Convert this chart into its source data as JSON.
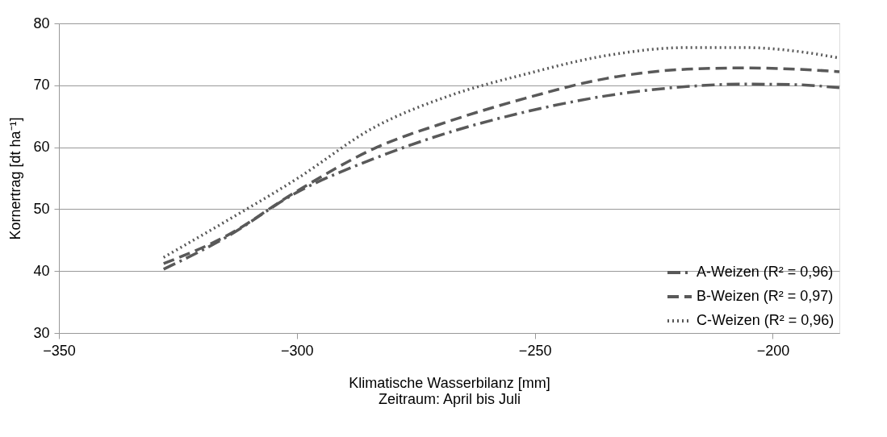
{
  "chart_data": {
    "type": "line",
    "xlabel": "Klimatische Wasserbilanz [mm]\nZeitraum: April bis Juli",
    "ylabel": "Kornertrag [dt ha⁻¹]",
    "x": [
      -328,
      -315,
      -300,
      -284,
      -268,
      -252,
      -235,
      -218,
      -206,
      -195,
      -186
    ],
    "series": [
      {
        "name": "A-Weizen (R² = 0,96)",
        "color": "#595959",
        "line_style": "dashdot",
        "values": [
          40.3,
          45.4,
          52.7,
          58.1,
          62.4,
          65.7,
          68.3,
          69.8,
          70.2,
          70.1,
          69.6
        ]
      },
      {
        "name": "B-Weizen (R² = 0,97)",
        "color": "#595959",
        "line_style": "dashed",
        "values": [
          41.2,
          45.6,
          52.9,
          59.7,
          64.2,
          67.9,
          71.1,
          72.6,
          72.8,
          72.6,
          72.2
        ]
      },
      {
        "name": "C-Weizen (R² = 0,96)",
        "color": "#595959",
        "line_style": "dotted",
        "values": [
          42.2,
          48.0,
          54.9,
          63.1,
          68.3,
          71.8,
          74.8,
          76.1,
          76.1,
          75.5,
          74.4
        ]
      }
    ],
    "xlim": [
      -350,
      -186
    ],
    "xticks": [
      -350,
      -300,
      -250,
      -200
    ],
    "ylim": [
      30,
      80
    ],
    "yticks": [
      30,
      40,
      50,
      60,
      70,
      80
    ],
    "grid": "y",
    "legend": "bottom right",
    "marker": "none"
  }
}
